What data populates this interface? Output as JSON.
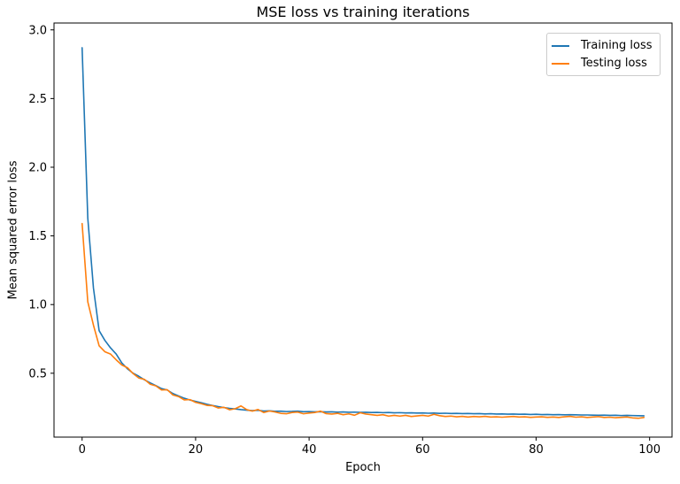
{
  "chart_data": {
    "type": "line",
    "title": "MSE loss vs training iterations",
    "xlabel": "Epoch",
    "ylabel": "Mean squared error loss",
    "xlim": [
      -4.95,
      103.95
    ],
    "ylim": [
      0.035,
      3.05
    ],
    "xticks": [
      0,
      20,
      40,
      60,
      80,
      100
    ],
    "yticks": [
      0.5,
      1.0,
      1.5,
      2.0,
      2.5,
      3.0
    ],
    "grid": false,
    "legend_position": "upper right",
    "x": [
      0,
      1,
      2,
      3,
      4,
      5,
      6,
      7,
      8,
      9,
      10,
      11,
      12,
      13,
      14,
      15,
      16,
      17,
      18,
      19,
      20,
      21,
      22,
      23,
      24,
      25,
      26,
      27,
      28,
      29,
      30,
      31,
      32,
      33,
      34,
      35,
      36,
      37,
      38,
      39,
      40,
      41,
      42,
      43,
      44,
      45,
      46,
      47,
      48,
      49,
      50,
      51,
      52,
      53,
      54,
      55,
      56,
      57,
      58,
      59,
      60,
      61,
      62,
      63,
      64,
      65,
      66,
      67,
      68,
      69,
      70,
      71,
      72,
      73,
      74,
      75,
      76,
      77,
      78,
      79,
      80,
      81,
      82,
      83,
      84,
      85,
      86,
      87,
      88,
      89,
      90,
      91,
      92,
      93,
      94,
      95,
      96,
      97,
      98,
      99
    ],
    "series": [
      {
        "name": "Training loss",
        "color": "#1f77b4",
        "values": [
          2.87,
          1.63,
          1.12,
          0.81,
          0.74,
          0.685,
          0.64,
          0.575,
          0.532,
          0.5,
          0.478,
          0.452,
          0.43,
          0.41,
          0.388,
          0.378,
          0.352,
          0.335,
          0.318,
          0.305,
          0.295,
          0.285,
          0.274,
          0.265,
          0.257,
          0.25,
          0.244,
          0.24,
          0.235,
          0.231,
          0.228,
          0.23,
          0.225,
          0.226,
          0.223,
          0.224,
          0.221,
          0.222,
          0.224,
          0.22,
          0.221,
          0.219,
          0.22,
          0.218,
          0.219,
          0.217,
          0.218,
          0.216,
          0.217,
          0.215,
          0.216,
          0.214,
          0.215,
          0.213,
          0.214,
          0.212,
          0.213,
          0.211,
          0.212,
          0.21,
          0.211,
          0.209,
          0.21,
          0.208,
          0.209,
          0.207,
          0.208,
          0.206,
          0.207,
          0.205,
          0.206,
          0.204,
          0.205,
          0.203,
          0.204,
          0.202,
          0.203,
          0.201,
          0.202,
          0.2,
          0.201,
          0.199,
          0.2,
          0.198,
          0.199,
          0.197,
          0.198,
          0.197,
          0.196,
          0.196,
          0.195,
          0.194,
          0.195,
          0.193,
          0.194,
          0.192,
          0.193,
          0.192,
          0.191,
          0.19
        ]
      },
      {
        "name": "Testing loss",
        "color": "#ff7f0e",
        "values": [
          1.59,
          1.02,
          0.85,
          0.7,
          0.657,
          0.64,
          0.598,
          0.56,
          0.54,
          0.497,
          0.465,
          0.455,
          0.42,
          0.408,
          0.378,
          0.38,
          0.342,
          0.33,
          0.306,
          0.308,
          0.288,
          0.278,
          0.266,
          0.264,
          0.247,
          0.252,
          0.234,
          0.242,
          0.262,
          0.235,
          0.224,
          0.236,
          0.214,
          0.225,
          0.218,
          0.208,
          0.205,
          0.214,
          0.217,
          0.205,
          0.21,
          0.214,
          0.224,
          0.206,
          0.203,
          0.208,
          0.198,
          0.204,
          0.194,
          0.212,
          0.203,
          0.198,
          0.193,
          0.198,
          0.188,
          0.193,
          0.188,
          0.193,
          0.185,
          0.189,
          0.193,
          0.188,
          0.201,
          0.191,
          0.185,
          0.188,
          0.183,
          0.186,
          0.181,
          0.185,
          0.183,
          0.186,
          0.181,
          0.183,
          0.18,
          0.183,
          0.185,
          0.181,
          0.183,
          0.179,
          0.181,
          0.183,
          0.179,
          0.181,
          0.178,
          0.183,
          0.186,
          0.18,
          0.183,
          0.178,
          0.181,
          0.184,
          0.178,
          0.18,
          0.176,
          0.179,
          0.181,
          0.175,
          0.172,
          0.178
        ]
      }
    ]
  },
  "colors": {
    "spine": "#000000",
    "tick_label": "#000000",
    "background": "#ffffff",
    "legend_border": "#cccccc"
  }
}
